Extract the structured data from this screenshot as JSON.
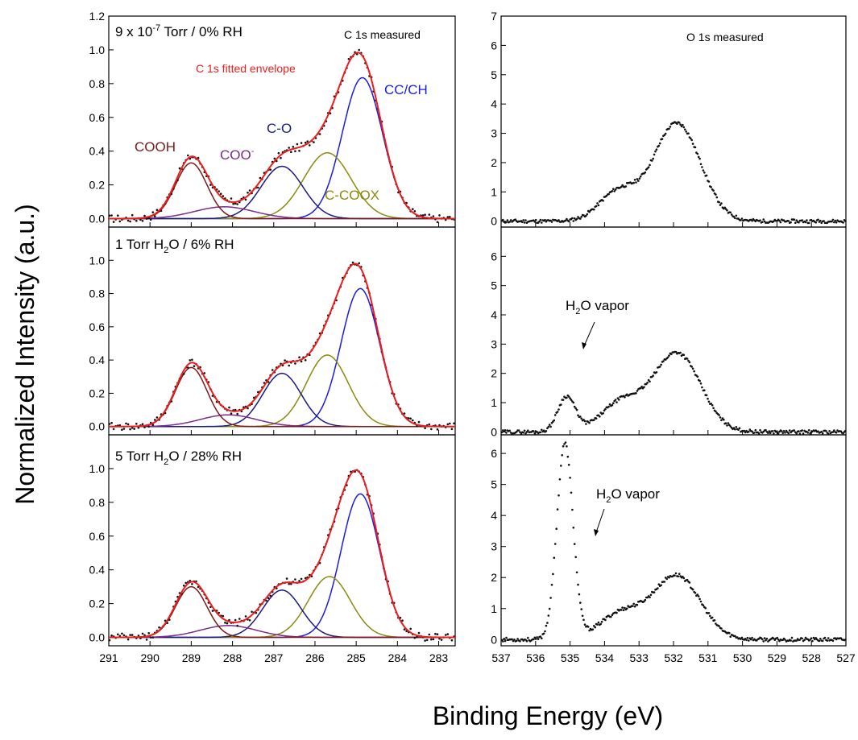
{
  "figure": {
    "ylabel": "Normalized Intensity (a.u.)",
    "xlabel": "Binding Energy (eV)"
  },
  "colors": {
    "envelope": "#ee1c1c",
    "cc_ch": "#1c1ce0",
    "c_coox": "#8a8a10",
    "c_o": "#1a1a80",
    "coo": "#7a2a8a",
    "cooh": "#7a1a1a",
    "measured": "#111111"
  },
  "chart_data": [
    {
      "type": "line",
      "panel": "C 1s dry",
      "condition": {
        "pre": "9 x 10",
        "sup": "-7",
        "post": " Torr / 0% RH"
      },
      "labels": {
        "measured": "C 1s measured",
        "envelope": "C 1s fitted envelope",
        "cooh": "COOH",
        "coo": "COO",
        "coo_sup": "-",
        "c_o": "C-O",
        "c_coox": "C-COOX",
        "cc_ch": "CC/CH"
      },
      "xlim": [
        291,
        282.6
      ],
      "ylim": [
        -0.05,
        1.2
      ],
      "xticks": [
        291,
        290,
        289,
        288,
        287,
        286,
        285,
        284,
        283
      ],
      "yticks": [
        0.0,
        0.2,
        0.4,
        0.6,
        0.8,
        1.0,
        1.2
      ],
      "components": [
        {
          "name": "CC/CH",
          "center": 284.85,
          "amp": 0.835,
          "fwhm": 1.15
        },
        {
          "name": "C-COOX",
          "center": 285.7,
          "amp": 0.39,
          "fwhm": 1.35
        },
        {
          "name": "C-O",
          "center": 286.8,
          "amp": 0.31,
          "fwhm": 1.2
        },
        {
          "name": "COO-",
          "center": 288.2,
          "amp": 0.07,
          "fwhm": 1.7
        },
        {
          "name": "COOH",
          "center": 289.0,
          "amp": 0.33,
          "fwhm": 0.9
        }
      ]
    },
    {
      "type": "line",
      "panel": "C 1s 1 Torr",
      "condition": {
        "pre": "1 Torr H",
        "sub": "2",
        "post": "O / 6% RH"
      },
      "xlim": [
        291,
        282.6
      ],
      "ylim": [
        -0.05,
        1.2
      ],
      "xticks": [
        291,
        290,
        289,
        288,
        287,
        286,
        285,
        284,
        283
      ],
      "yticks": [
        0.0,
        0.2,
        0.4,
        0.6,
        0.8,
        1.0
      ],
      "components": [
        {
          "name": "CC/CH",
          "center": 284.9,
          "amp": 0.83,
          "fwhm": 1.1
        },
        {
          "name": "C-COOX",
          "center": 285.7,
          "amp": 0.43,
          "fwhm": 1.2
        },
        {
          "name": "C-O",
          "center": 286.8,
          "amp": 0.32,
          "fwhm": 1.1
        },
        {
          "name": "COO-",
          "center": 288.1,
          "amp": 0.07,
          "fwhm": 1.6
        },
        {
          "name": "COOH",
          "center": 289.0,
          "amp": 0.355,
          "fwhm": 0.9
        }
      ]
    },
    {
      "type": "line",
      "panel": "C 1s 5 Torr",
      "condition": {
        "pre": "5 Torr H",
        "sub": "2",
        "post": "O / 28% RH"
      },
      "xlim": [
        291,
        282.6
      ],
      "ylim": [
        -0.05,
        1.2
      ],
      "xticks": [
        291,
        290,
        289,
        288,
        287,
        286,
        285,
        284,
        283
      ],
      "yticks": [
        0.0,
        0.2,
        0.4,
        0.6,
        0.8,
        1.0
      ],
      "components": [
        {
          "name": "CC/CH",
          "center": 284.9,
          "amp": 0.85,
          "fwhm": 1.1
        },
        {
          "name": "C-COOX",
          "center": 285.65,
          "amp": 0.36,
          "fwhm": 1.2
        },
        {
          "name": "C-O",
          "center": 286.8,
          "amp": 0.28,
          "fwhm": 1.1
        },
        {
          "name": "COO-",
          "center": 288.1,
          "amp": 0.07,
          "fwhm": 1.6
        },
        {
          "name": "COOH",
          "center": 289.0,
          "amp": 0.3,
          "fwhm": 0.9
        }
      ]
    },
    {
      "type": "scatter",
      "panel": "O 1s dry",
      "labels": {
        "measured": "O 1s measured"
      },
      "xlim": [
        537,
        527
      ],
      "ylim": [
        -0.2,
        7
      ],
      "xticks": [
        537,
        536,
        535,
        534,
        533,
        532,
        531,
        530,
        529,
        528,
        527
      ],
      "yticks": [
        0,
        1,
        2,
        3,
        4,
        5,
        6,
        7
      ],
      "peaks": [
        {
          "center": 531.9,
          "amp": 3.35,
          "fwhm": 1.6
        },
        {
          "center": 533.6,
          "amp": 1.0,
          "fwhm": 1.3
        }
      ]
    },
    {
      "type": "scatter",
      "panel": "O 1s 1 Torr",
      "labels": {
        "vapor_pre": "H",
        "vapor_sub": "2",
        "vapor_post": "O vapor"
      },
      "xlim": [
        537,
        527
      ],
      "ylim": [
        -0.1,
        7
      ],
      "xticks": [
        537,
        536,
        535,
        534,
        533,
        532,
        531,
        530,
        529,
        528,
        527
      ],
      "yticks": [
        0,
        1,
        2,
        3,
        4,
        5,
        6
      ],
      "peaks": [
        {
          "center": 531.9,
          "amp": 2.7,
          "fwhm": 1.6
        },
        {
          "center": 533.5,
          "amp": 1.0,
          "fwhm": 1.4
        },
        {
          "center": 535.1,
          "amp": 1.2,
          "fwhm": 0.6
        }
      ]
    },
    {
      "type": "scatter",
      "panel": "O 1s 5 Torr",
      "labels": {
        "vapor_pre": "H",
        "vapor_sub": "2",
        "vapor_post": "O vapor"
      },
      "xlim": [
        537,
        527
      ],
      "ylim": [
        -0.2,
        6.6
      ],
      "xticks": [
        537,
        536,
        535,
        534,
        533,
        532,
        531,
        530,
        529,
        528,
        527
      ],
      "yticks": [
        0,
        1,
        2,
        3,
        4,
        5,
        6
      ],
      "peaks": [
        {
          "center": 531.9,
          "amp": 2.05,
          "fwhm": 1.6
        },
        {
          "center": 533.5,
          "amp": 0.85,
          "fwhm": 1.5
        },
        {
          "center": 535.15,
          "amp": 6.3,
          "fwhm": 0.55
        }
      ]
    }
  ]
}
